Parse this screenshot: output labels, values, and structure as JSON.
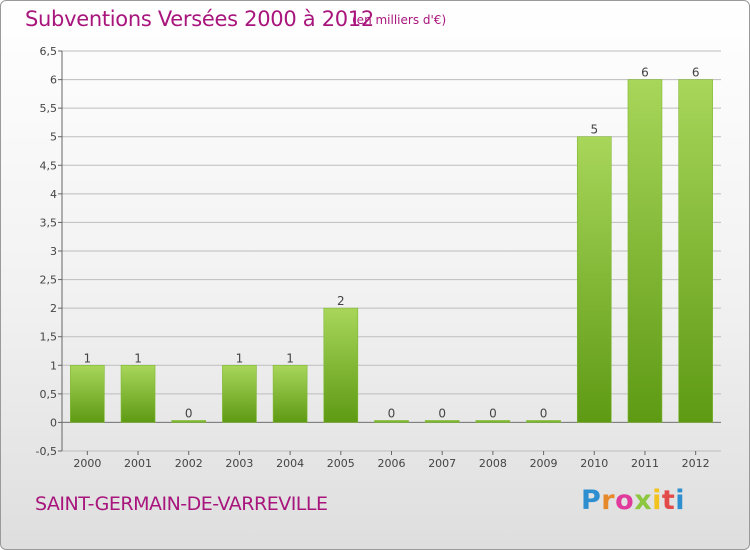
{
  "header": {
    "title": "Subventions Versées 2000 à 2012",
    "subtitle": "(en milliers d'€)"
  },
  "footer": {
    "commune": "SAINT-GERMAIN-DE-VARREVILLE",
    "logo": "Proxiti"
  },
  "colors": {
    "title": "#a8157c",
    "bar_light": "#a8d65a",
    "bar_dark": "#5e9a14",
    "grid": "#bbbbbb"
  },
  "chart_data": {
    "type": "bar",
    "title": "Subventions Versées 2000 à 2012",
    "subtitle": "(en milliers d'€)",
    "categories": [
      "2000",
      "2001",
      "2002",
      "2003",
      "2004",
      "2005",
      "2006",
      "2007",
      "2008",
      "2009",
      "2010",
      "2011",
      "2012"
    ],
    "values": [
      1,
      1,
      0,
      1,
      1,
      2,
      0,
      0,
      0,
      0,
      5,
      6,
      6
    ],
    "value_labels": [
      "1",
      "1",
      "0",
      "1",
      "1",
      "2",
      "0",
      "0",
      "0",
      "0",
      "5",
      "6",
      "6"
    ],
    "ylim": [
      -0.5,
      6.5
    ],
    "yticks": [
      "-0,5",
      "0",
      "0,5",
      "1",
      "1,5",
      "2",
      "2,5",
      "3",
      "3,5",
      "4",
      "4,5",
      "5",
      "5,5",
      "6",
      "6,5"
    ],
    "ytick_values": [
      -0.5,
      0,
      0.5,
      1,
      1.5,
      2,
      2.5,
      3,
      3.5,
      4,
      4.5,
      5,
      5.5,
      6,
      6.5
    ],
    "grid": true
  }
}
